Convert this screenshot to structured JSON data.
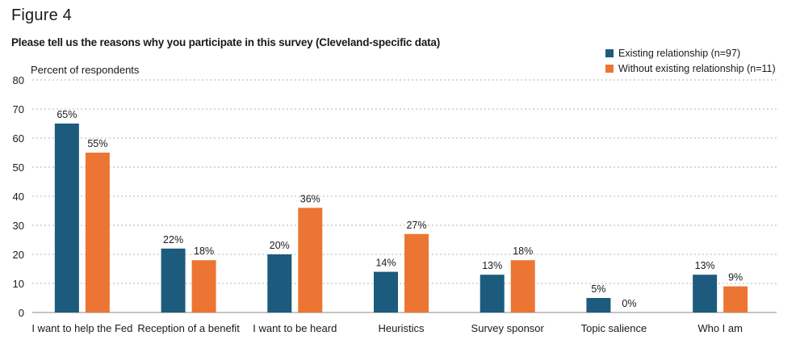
{
  "figure_label": "Figure 4",
  "chart_data": {
    "type": "bar",
    "title": "Please tell us the reasons why you participate in this survey (Cleveland-specific data)",
    "ylabel": "Percent of respondents",
    "xlabel": "",
    "ylim": [
      0,
      80
    ],
    "yticks": [
      "0",
      "10",
      "20",
      "30",
      "40",
      "50",
      "60",
      "70",
      "80"
    ],
    "grid": true,
    "legend_position": "top-right",
    "categories": [
      "I want to help the Fed",
      "Reception of a benefit",
      "I want to be heard",
      "Heuristics",
      "Survey sponsor",
      "Topic salience",
      "Who I am"
    ],
    "series": [
      {
        "name": "Existing relationship (n=97)",
        "color": "#1c5b7d",
        "values": [
          65,
          22,
          20,
          14,
          13,
          5,
          13
        ],
        "labels": [
          "65%",
          "22%",
          "20%",
          "14%",
          "13%",
          "5%",
          "13%"
        ]
      },
      {
        "name": "Without existing relationship (n=11)",
        "color": "#ec7533",
        "values": [
          55,
          18,
          36,
          27,
          18,
          0,
          9
        ],
        "labels": [
          "55%",
          "18%",
          "36%",
          "27%",
          "18%",
          "0%",
          "9%"
        ]
      }
    ]
  }
}
